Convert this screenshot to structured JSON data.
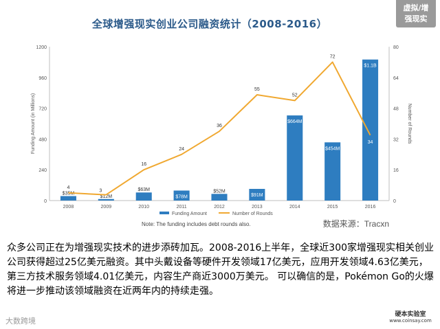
{
  "header": {
    "title": "全球增强现实创业公司融资统计（2008-2016）",
    "badge_line1": "虚拟/增",
    "badge_line2": "强现实"
  },
  "chart_data": {
    "type": "bar",
    "title": "全球增强现实创业公司融资统计（2008-2016）",
    "categories": [
      "2008",
      "2009",
      "2010",
      "2011",
      "2012",
      "2013",
      "2014",
      "2015",
      "2016"
    ],
    "ylabel_left": "Funding Amount (in Millions)",
    "ylabel_right": "Number of Rounds",
    "ylim_left": [
      0,
      1200
    ],
    "ylim_right": [
      0,
      80
    ],
    "yticks_left": [
      "0",
      "240",
      "480",
      "720",
      "960",
      "1200"
    ],
    "yticks_right": [
      "0",
      "16",
      "32",
      "48",
      "64",
      "80"
    ],
    "series": [
      {
        "name": "Funding Amount",
        "type": "bar",
        "axis": "left",
        "color": "#2e7dc0",
        "values": [
          35,
          12,
          63,
          78,
          52,
          91,
          664,
          454,
          1100
        ],
        "labels": [
          "$35M",
          "$12M",
          "$63M",
          "$78M",
          "$52M",
          "$91M",
          "$664M",
          "$454M",
          "$1.1B"
        ]
      },
      {
        "name": "Number of Rounds",
        "type": "line",
        "axis": "right",
        "color": "#f0a830",
        "values": [
          4,
          3,
          16,
          24,
          36,
          55,
          52,
          72,
          34
        ],
        "labels": [
          "4",
          "3",
          "16",
          "24",
          "36",
          "55",
          "52",
          "72",
          "34"
        ]
      }
    ],
    "legend": [
      "Funding Amount",
      "Number of Rounds"
    ],
    "legend_position": "bottom",
    "note": "Note: The funding includes debt rounds also.",
    "grid": false
  },
  "source": "数据来源：Tracxn",
  "body_text": "众多公司正在为增强现实技术的进步添砖加瓦。2008-2016上半年，全球近300家增强现实相关创业公司获得超过25亿美元融资。其中头戴设备等硬件开发领域17亿美元，应用开发领域4.63亿美元，第三方技术服务领域4.01亿美元，内容生产商近3000万美元。 可以确信的是，Pokémon Go的火爆将进一步推动该领域融资在近两年内的持续走强。",
  "footer": {
    "left": "大数跨境",
    "right_name": "硬本实验室",
    "right_url": "www.coinsay.com"
  }
}
